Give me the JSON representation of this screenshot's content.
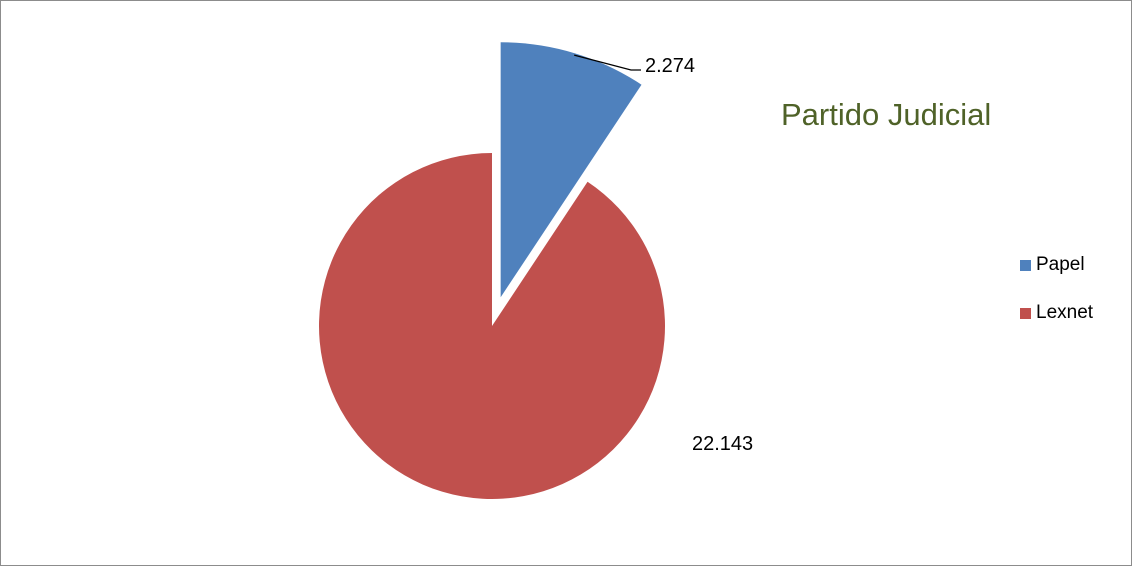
{
  "chart_data": {
    "type": "pie",
    "title": "Partido Judicial",
    "categories": [
      "Papel",
      "Lexnet"
    ],
    "values": [
      2274,
      22143
    ],
    "value_labels": [
      "2.274",
      "22.143"
    ],
    "exploded": [
      "Papel"
    ],
    "colors": [
      "#4f81bd",
      "#c0504d"
    ],
    "legend_position": "right",
    "start_angle_deg": 0,
    "direction": "clockwise"
  }
}
